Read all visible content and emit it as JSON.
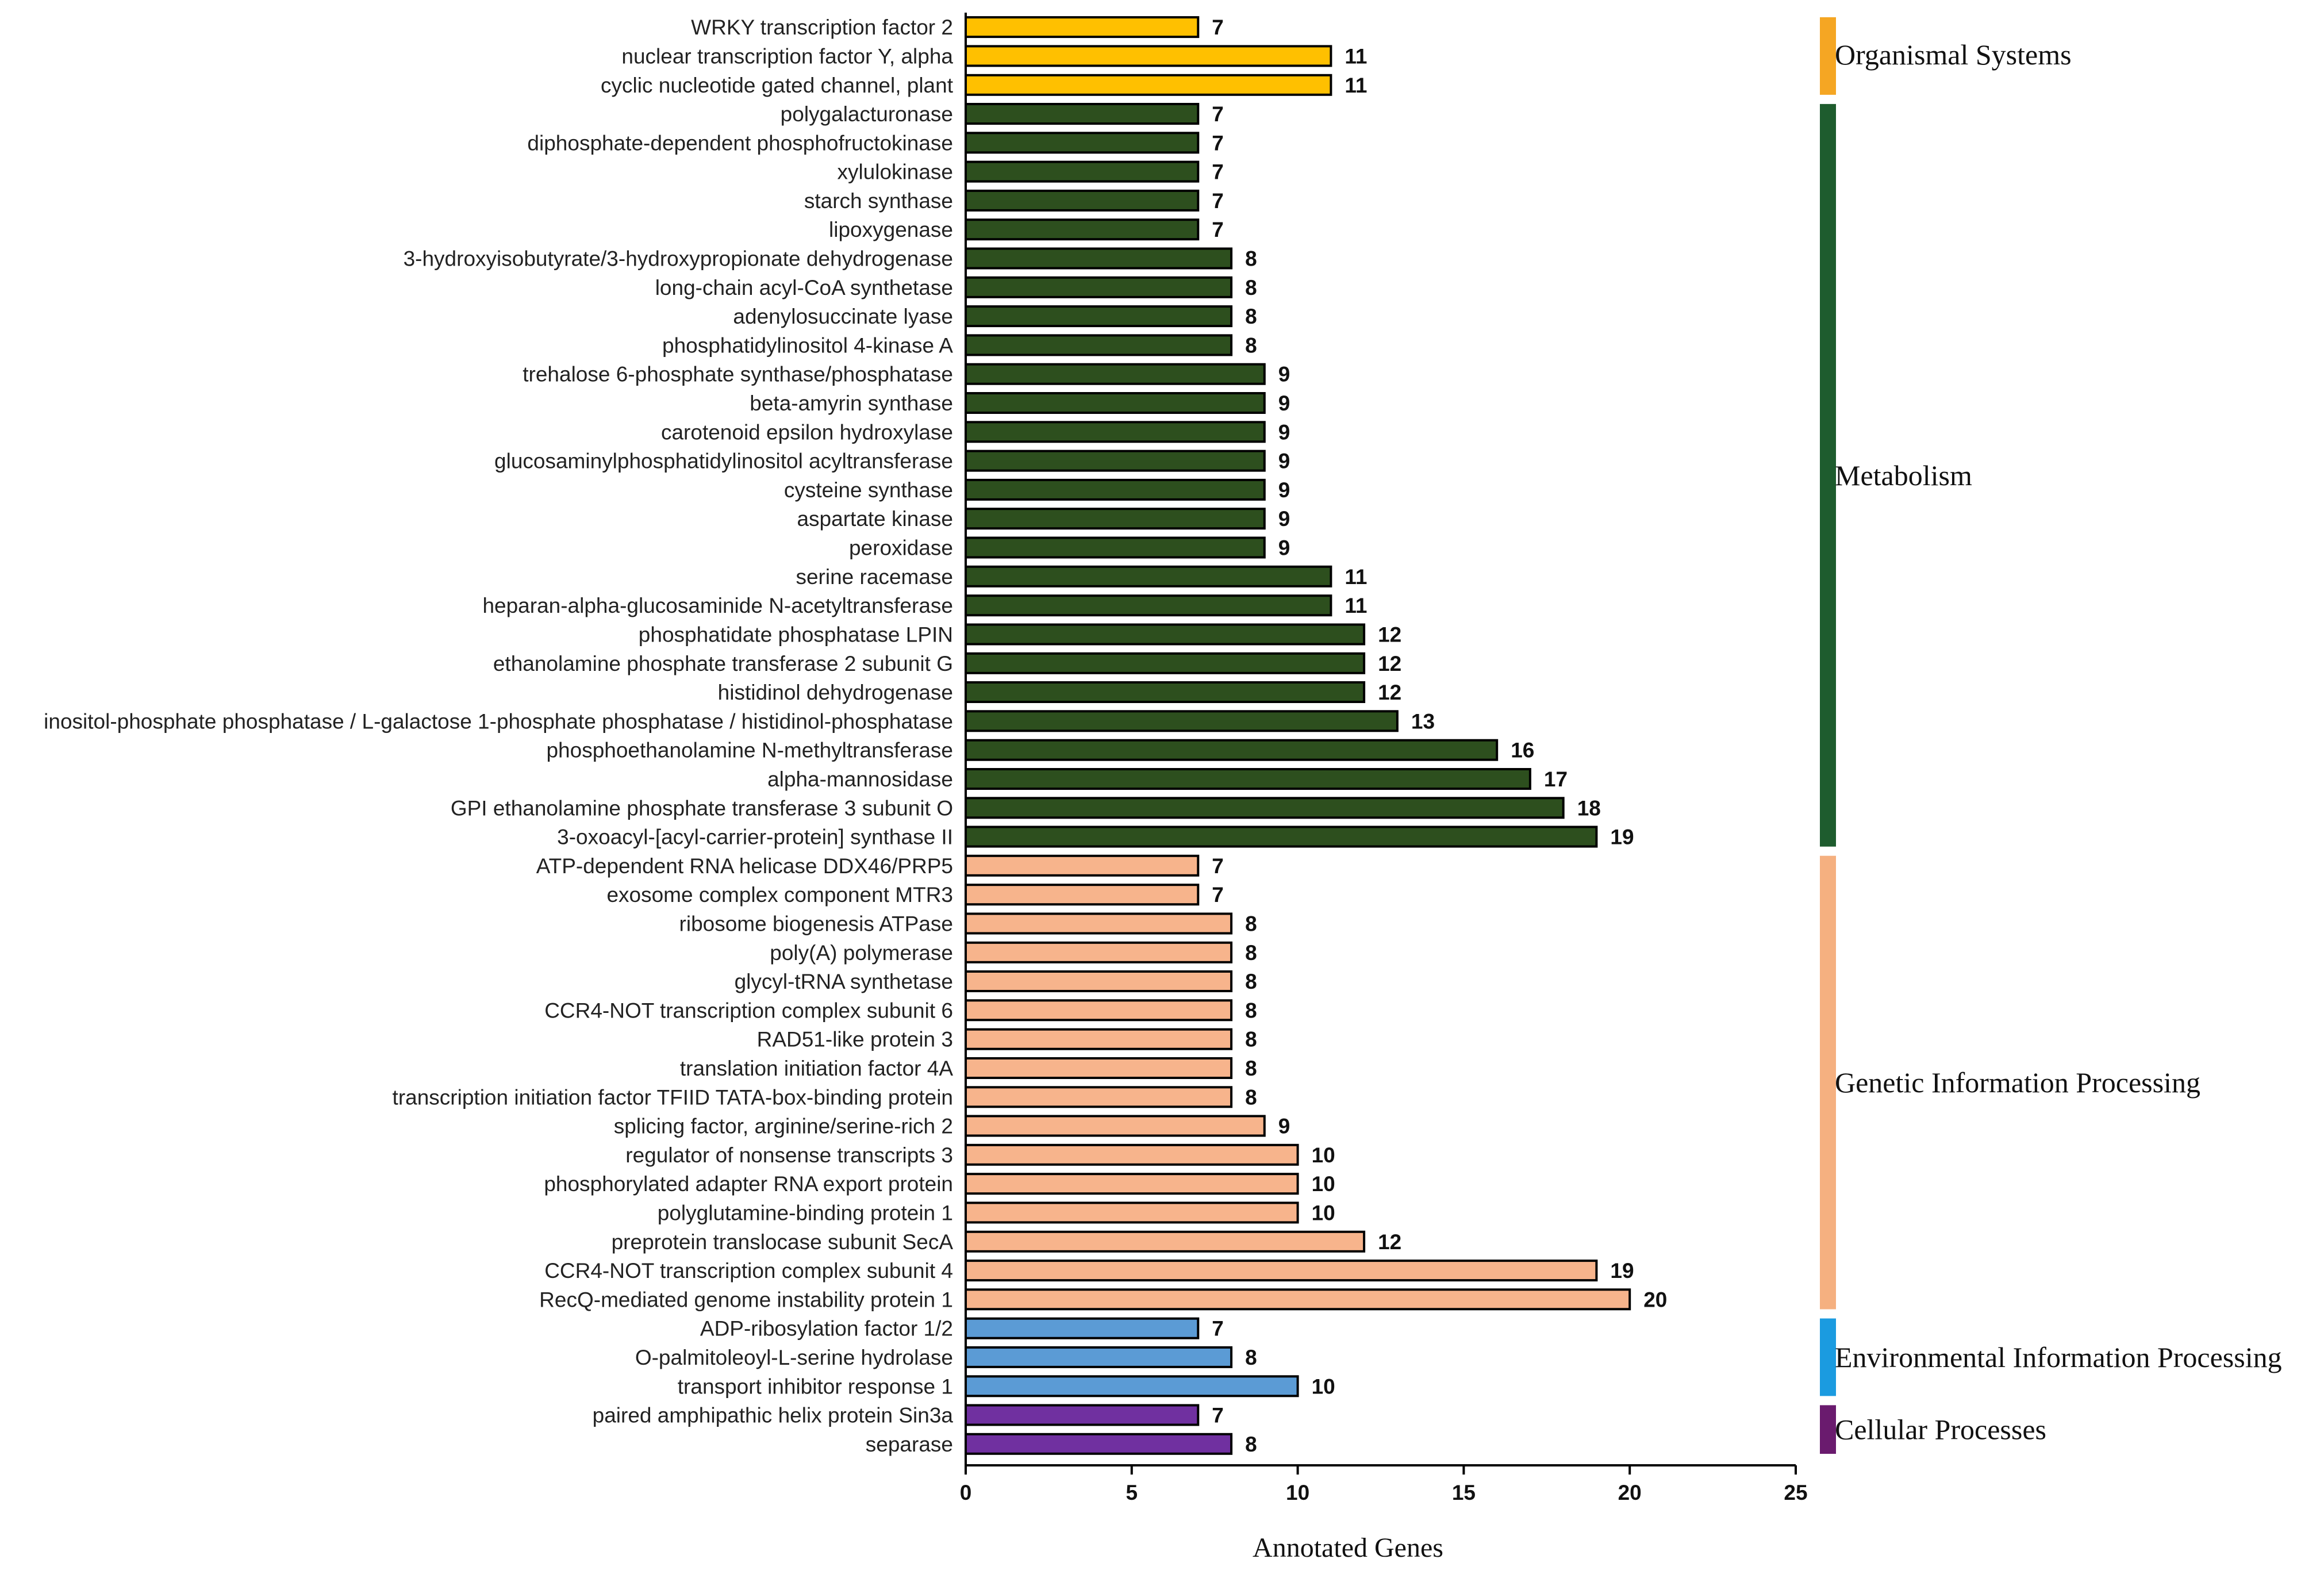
{
  "chart_data": {
    "type": "bar",
    "orientation": "horizontal",
    "xlabel": "Annotated Genes",
    "xlim": [
      0,
      25
    ],
    "xticks": [
      0,
      5,
      10,
      15,
      20,
      25
    ],
    "grid": false,
    "groups": [
      {
        "name": "Organismal Systems",
        "color": "#FFC000",
        "band_color": "#F5A623",
        "items": [
          {
            "label": "WRKY transcription factor 2",
            "value": 7
          },
          {
            "label": "nuclear transcription factor Y, alpha",
            "value": 11
          },
          {
            "label": "cyclic nucleotide gated channel, plant",
            "value": 11
          }
        ]
      },
      {
        "name": "Metabolism",
        "color": "#2D4F1E",
        "band_color": "#1E5C2E",
        "items": [
          {
            "label": "polygalacturonase",
            "value": 7
          },
          {
            "label": "diphosphate-dependent phosphofructokinase",
            "value": 7
          },
          {
            "label": "xylulokinase",
            "value": 7
          },
          {
            "label": "starch synthase",
            "value": 7
          },
          {
            "label": "lipoxygenase",
            "value": 7
          },
          {
            "label": "3-hydroxyisobutyrate/3-hydroxypropionate dehydrogenase",
            "value": 8
          },
          {
            "label": "long-chain acyl-CoA synthetase",
            "value": 8
          },
          {
            "label": "adenylosuccinate lyase",
            "value": 8
          },
          {
            "label": "phosphatidylinositol 4-kinase A",
            "value": 8
          },
          {
            "label": "trehalose 6-phosphate synthase/phosphatase",
            "value": 9
          },
          {
            "label": "beta-amyrin synthase",
            "value": 9
          },
          {
            "label": "carotenoid epsilon hydroxylase",
            "value": 9
          },
          {
            "label": "glucosaminylphosphatidylinositol acyltransferase",
            "value": 9
          },
          {
            "label": "cysteine synthase",
            "value": 9
          },
          {
            "label": "aspartate kinase",
            "value": 9
          },
          {
            "label": "peroxidase",
            "value": 9
          },
          {
            "label": "serine racemase",
            "value": 11
          },
          {
            "label": "heparan-alpha-glucosaminide N-acetyltransferase",
            "value": 11
          },
          {
            "label": "phosphatidate phosphatase LPIN",
            "value": 12
          },
          {
            "label": "ethanolamine phosphate transferase 2 subunit G",
            "value": 12
          },
          {
            "label": "histidinol dehydrogenase",
            "value": 12
          },
          {
            "label": "inositol-phosphate phosphatase / L-galactose 1-phosphate phosphatase / histidinol-phosphatase",
            "value": 13
          },
          {
            "label": "phosphoethanolamine N-methyltransferase",
            "value": 16
          },
          {
            "label": "alpha-mannosidase",
            "value": 17
          },
          {
            "label": "GPI ethanolamine phosphate transferase 3 subunit O",
            "value": 18
          },
          {
            "label": "3-oxoacyl-[acyl-carrier-protein] synthase II",
            "value": 19
          }
        ]
      },
      {
        "name": "Genetic Information Processing",
        "color": "#F7B48C",
        "band_color": "#F5B080",
        "items": [
          {
            "label": "ATP-dependent RNA helicase DDX46/PRP5",
            "value": 7
          },
          {
            "label": "exosome complex component MTR3",
            "value": 7
          },
          {
            "label": "ribosome biogenesis ATPase",
            "value": 8
          },
          {
            "label": "poly(A) polymerase",
            "value": 8
          },
          {
            "label": "glycyl-tRNA synthetase",
            "value": 8
          },
          {
            "label": "CCR4-NOT transcription complex subunit 6",
            "value": 8
          },
          {
            "label": "RAD51-like protein 3",
            "value": 8
          },
          {
            "label": "translation initiation factor 4A",
            "value": 8
          },
          {
            "label": "transcription initiation factor TFIID TATA-box-binding protein",
            "value": 8
          },
          {
            "label": "splicing factor, arginine/serine-rich 2",
            "value": 9
          },
          {
            "label": "regulator of nonsense transcripts 3",
            "value": 10
          },
          {
            "label": "phosphorylated adapter RNA export protein",
            "value": 10
          },
          {
            "label": "polyglutamine-binding protein 1",
            "value": 10
          },
          {
            "label": "preprotein translocase subunit SecA",
            "value": 12
          },
          {
            "label": "CCR4-NOT transcription complex subunit 4",
            "value": 19
          },
          {
            "label": "RecQ-mediated genome instability protein 1",
            "value": 20
          }
        ]
      },
      {
        "name": "Environmental Information Processing",
        "color": "#5B9BD5",
        "band_color": "#1B9BE0",
        "items": [
          {
            "label": "ADP-ribosylation factor 1/2",
            "value": 7
          },
          {
            "label": "O-palmitoleoyl-L-serine hydrolase",
            "value": 8
          },
          {
            "label": "transport inhibitor response 1",
            "value": 10
          }
        ]
      },
      {
        "name": "Cellular Processes",
        "color": "#7030A0",
        "band_color": "#6A1B6E",
        "items": [
          {
            "label": "paired amphipathic helix protein Sin3a",
            "value": 7
          },
          {
            "label": "separase",
            "value": 8
          }
        ]
      }
    ]
  }
}
